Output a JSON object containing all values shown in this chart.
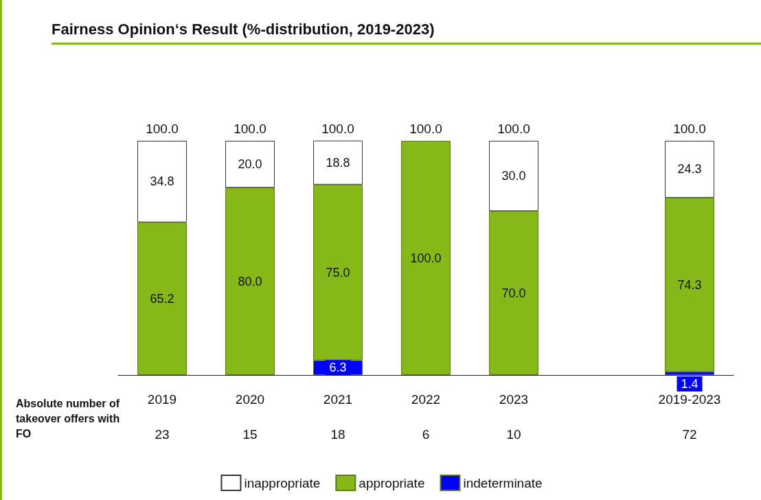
{
  "chart_data": {
    "type": "bar",
    "title": "Fairness Opinion‘s Result (%-distribution, 2019-2023)",
    "categories": [
      "2019",
      "2020",
      "2021",
      "2022",
      "2023",
      null,
      "2019-2023"
    ],
    "stacked": true,
    "ylim": [
      0,
      100
    ],
    "tick_labels": "x",
    "legend": "bottom",
    "series": [
      {
        "name": "indeterminate",
        "color": "#0000ff",
        "values": [
          null,
          null,
          6.3,
          null,
          null,
          null,
          1.4
        ],
        "value_labels": [
          null,
          null,
          "6.3",
          null,
          null,
          null,
          "1.4"
        ]
      },
      {
        "name": "appropriate",
        "color": "#86b81a",
        "values": [
          65.2,
          80.0,
          75.0,
          100.0,
          70.0,
          null,
          74.3
        ],
        "value_labels": [
          "65.2",
          "80.0",
          "75.0",
          "100.0",
          "70.0",
          null,
          "74.3"
        ]
      },
      {
        "name": "inappropriate",
        "color": "#ffffff",
        "values": [
          34.8,
          20.0,
          18.8,
          null,
          30.0,
          null,
          24.3
        ],
        "value_labels": [
          "34.8",
          "20.0",
          "18.8",
          null,
          "30.0",
          null,
          "24.3"
        ]
      }
    ],
    "totals": [
      "100.0",
      "100.0",
      "100.0",
      "100.0",
      "100.0",
      null,
      "100.0"
    ],
    "annotations": [
      "Absolute number of takeover offers with FO",
      "23",
      "15",
      "18",
      "6",
      "10",
      "72"
    ]
  }
}
